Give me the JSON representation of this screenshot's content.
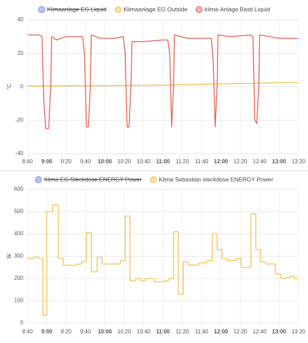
{
  "chart_data": [
    {
      "type": "line",
      "y_label": "°C",
      "x": [
        "8:40",
        "8:52",
        "8:55",
        "8:57",
        "8:59",
        "9:02",
        "9:04",
        "9:05",
        "9:10",
        "9:20",
        "9:37",
        "9:39",
        "9:41",
        "9:43",
        "9:45",
        "9:46",
        "9:55",
        "10:10",
        "10:19",
        "10:21",
        "10:23",
        "10:25",
        "10:27",
        "10:28",
        "10:40",
        "11:00",
        "11:05",
        "11:07",
        "11:09",
        "11:11",
        "11:12",
        "11:25",
        "11:45",
        "11:50",
        "11:52",
        "11:54",
        "11:56",
        "11:57",
        "12:10",
        "12:30",
        "12:33",
        "12:35",
        "12:37",
        "12:39",
        "12:40",
        "13:00",
        "13:20"
      ],
      "xlim": [
        "8:40",
        "13:20"
      ],
      "xticks": [
        "8:40",
        "9:00",
        "9:20",
        "9:40",
        "10:00",
        "10:20",
        "10:40",
        "11:00",
        "11:20",
        "11:40",
        "12:00",
        "12:20",
        "12:40",
        "13:00",
        "13:20"
      ],
      "ylim": [
        -40,
        40
      ],
      "yticks": [
        40,
        20,
        0,
        -20,
        -40
      ],
      "grid": true,
      "series": [
        {
          "name": "Klimaanlage EG Liquid",
          "color": "#6f8fd8",
          "hidden": true
        },
        {
          "name": "Klimaanlage EG Outside",
          "color": "#f0c24e",
          "values": [
            0.5,
            0.5,
            0.5,
            0.5,
            0.5,
            0.5,
            0.5,
            0.5,
            0.5,
            0.6,
            0.6,
            0.6,
            0.6,
            0.6,
            0.6,
            0.7,
            0.7,
            0.7,
            0.8,
            0.8,
            0.8,
            0.8,
            0.8,
            0.8,
            0.9,
            1.0,
            1.0,
            1.1,
            1.1,
            1.1,
            1.2,
            1.3,
            1.5,
            1.6,
            1.6,
            1.7,
            1.7,
            1.7,
            1.9,
            2.0,
            2.1,
            2.1,
            2.1,
            2.2,
            2.2,
            2.4,
            2.5
          ]
        },
        {
          "name": "klima-Anlage Basti Liquid",
          "color": "#e4685a",
          "values": [
            31,
            31,
            30,
            -10,
            -25,
            -25,
            0,
            30,
            28,
            30,
            30,
            20,
            -24,
            -24,
            0,
            31,
            29,
            29,
            30,
            20,
            -24,
            -24,
            0,
            27,
            27,
            28,
            28,
            20,
            -24,
            0,
            31,
            29,
            29,
            29,
            15,
            -24,
            0,
            31,
            30,
            31,
            30,
            -20,
            -22,
            0,
            31,
            29,
            29
          ]
        }
      ]
    },
    {
      "type": "line",
      "step": true,
      "y_label": "W",
      "x": [
        "8:40",
        "8:47",
        "8:52",
        "8:56",
        "9:00",
        "9:06",
        "9:12",
        "9:17",
        "9:31",
        "9:36",
        "9:41",
        "9:46",
        "9:52",
        "9:57",
        "10:16",
        "10:21",
        "10:26",
        "10:32",
        "10:37",
        "10:42",
        "10:51",
        "11:02",
        "11:06",
        "11:11",
        "11:16",
        "11:21",
        "11:26",
        "11:37",
        "11:45",
        "11:51",
        "11:56",
        "12:01",
        "12:06",
        "12:16",
        "12:21",
        "12:31",
        "12:36",
        "12:41",
        "12:46",
        "12:56",
        "13:02",
        "13:07",
        "13:12",
        "13:16",
        "13:20"
      ],
      "xlim": [
        "8:40",
        "13:20"
      ],
      "xticks": [
        "8:40",
        "9:00",
        "9:20",
        "9:40",
        "10:00",
        "10:20",
        "10:40",
        "11:00",
        "11:20",
        "11:40",
        "12:00",
        "12:20",
        "12:40",
        "13:00",
        "13:20"
      ],
      "ylim": [
        0,
        600
      ],
      "yticks": [
        600,
        500,
        400,
        300,
        200,
        100,
        0
      ],
      "grid": true,
      "series": [
        {
          "name": "Klima EG Steckdose ENERGY Power",
          "color": "#6f8fd8",
          "hidden": true
        },
        {
          "name": "Klima Sebastian steckdose ENERGY Power",
          "color": "#f0c24e",
          "values": [
            290,
            295,
            290,
            35,
            500,
            530,
            290,
            260,
            265,
            275,
            405,
            230,
            295,
            265,
            280,
            480,
            190,
            200,
            190,
            200,
            185,
            190,
            200,
            410,
            130,
            275,
            260,
            270,
            280,
            400,
            330,
            290,
            280,
            290,
            250,
            490,
            330,
            275,
            265,
            220,
            200,
            205,
            210,
            200,
            200
          ]
        }
      ]
    }
  ]
}
